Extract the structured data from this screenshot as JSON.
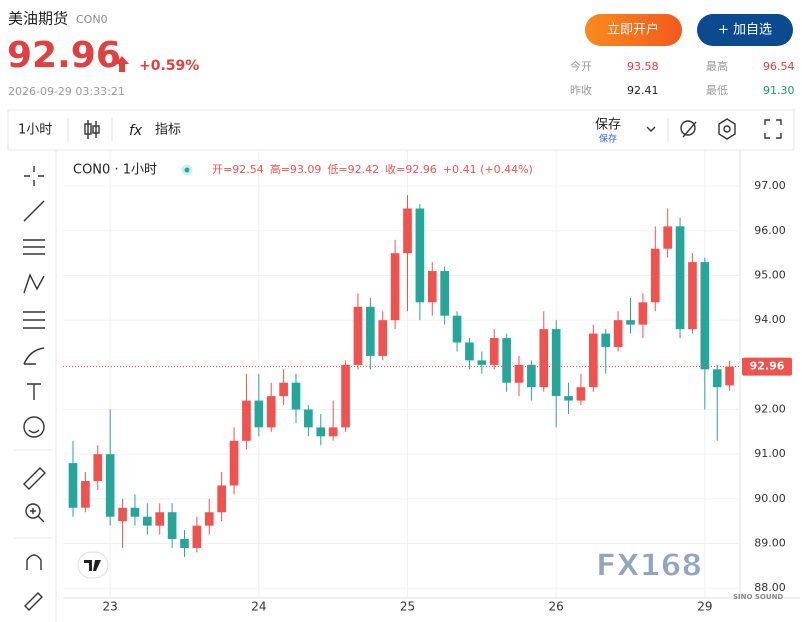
{
  "header": {
    "title": "美油期货",
    "code": "CON0",
    "price": "92.96",
    "change": "+0.59%",
    "time": "2026-09-29 03:33:21",
    "buttons": [
      "立即开户",
      "+ 加自选"
    ],
    "stats": [
      [
        "今开",
        "93.58"
      ],
      [
        "最高",
        "96.54"
      ],
      [
        "昨收",
        "92.41"
      ],
      [
        "最低",
        "91.30"
      ]
    ]
  },
  "toolbar": {
    "interval": "1小时",
    "indicators": "指标",
    "fx": "fx",
    "save": "保存",
    "save_sub": "保存"
  },
  "legend": {
    "symbol": "CON0 · 1小时",
    "open": "开=92.54",
    "high": "高=93.09",
    "low": "低=92.42",
    "close": "收=92.96",
    "change": "+0.41 (+0.44%)"
  },
  "watermark": "FX168",
  "corner_logo": "SINO SOUND",
  "chart_data": {
    "type": "candlestick",
    "categories": [
      null,
      null,
      null,
      "23",
      null,
      null,
      null,
      null,
      null,
      null,
      null,
      null,
      null,
      null,
      null,
      "24",
      null,
      null,
      null,
      null,
      null,
      null,
      null,
      null,
      null,
      null,
      null,
      "25",
      null,
      null,
      null,
      null,
      null,
      null,
      null,
      null,
      null,
      null,
      null,
      "26",
      null,
      null,
      null,
      null,
      null,
      null,
      null,
      null,
      null,
      null,
      null,
      "29",
      null,
      null
    ],
    "open": [
      90.8,
      89.8,
      90.4,
      91.0,
      89.5,
      89.8,
      89.6,
      89.4,
      89.7,
      89.1,
      88.9,
      89.4,
      89.7,
      90.3,
      91.3,
      92.2,
      91.6,
      92.3,
      92.6,
      92.0,
      91.6,
      91.4,
      91.6,
      93.0,
      94.3,
      93.2,
      94.0,
      95.5,
      96.5,
      94.4,
      95.1,
      94.1,
      93.5,
      93.1,
      93.0,
      93.6,
      92.6,
      93.0,
      92.5,
      93.8,
      92.3,
      92.2,
      92.5,
      93.7,
      93.4,
      94.0,
      93.9,
      94.4,
      95.6,
      96.1,
      93.8,
      95.3,
      92.9,
      92.54
    ],
    "high": [
      91.3,
      90.6,
      91.2,
      92.0,
      90.0,
      90.1,
      89.9,
      89.9,
      89.9,
      89.3,
      89.6,
      90.0,
      90.6,
      91.6,
      92.8,
      92.8,
      92.6,
      92.9,
      92.8,
      92.1,
      91.9,
      92.2,
      93.1,
      94.6,
      94.5,
      94.2,
      95.8,
      96.8,
      96.6,
      95.3,
      95.2,
      94.2,
      93.6,
      93.3,
      93.8,
      93.7,
      93.2,
      93.1,
      94.2,
      94.0,
      92.6,
      92.8,
      93.9,
      93.8,
      94.2,
      94.5,
      94.6,
      96.1,
      96.5,
      96.3,
      95.5,
      95.4,
      93.0,
      93.09
    ],
    "low": [
      89.6,
      89.7,
      90.2,
      89.4,
      88.9,
      89.4,
      89.2,
      89.2,
      88.9,
      88.7,
      88.8,
      89.2,
      89.5,
      90.1,
      91.1,
      91.4,
      91.5,
      92.1,
      91.7,
      91.4,
      91.2,
      91.3,
      91.5,
      92.9,
      92.9,
      93.1,
      93.8,
      94.2,
      94.0,
      94.1,
      93.9,
      93.3,
      92.9,
      92.8,
      92.9,
      92.4,
      92.3,
      92.2,
      92.4,
      91.6,
      91.9,
      92.1,
      92.4,
      92.8,
      93.3,
      93.7,
      93.6,
      94.2,
      95.4,
      93.6,
      93.7,
      92.0,
      91.3,
      92.42
    ],
    "close": [
      89.8,
      90.4,
      91.0,
      89.6,
      89.8,
      89.6,
      89.4,
      89.7,
      89.1,
      88.9,
      89.4,
      89.7,
      90.3,
      91.3,
      92.2,
      91.6,
      92.3,
      92.6,
      92.0,
      91.6,
      91.4,
      91.6,
      93.0,
      94.3,
      93.2,
      94.0,
      95.5,
      96.5,
      94.4,
      95.1,
      94.1,
      93.5,
      93.1,
      93.0,
      93.6,
      92.6,
      93.0,
      92.5,
      93.8,
      92.3,
      92.2,
      92.5,
      93.7,
      93.4,
      94.0,
      93.9,
      94.4,
      95.6,
      96.1,
      93.8,
      95.3,
      92.9,
      92.5,
      92.96
    ],
    "up_color": "#ef5350",
    "down_color": "#26a69a",
    "last_price": 92.96,
    "ylim": [
      87.78,
      97.81
    ],
    "yticks": [
      {
        "value": 88,
        "label": "88.00"
      },
      {
        "value": 89,
        "label": "89.00"
      },
      {
        "value": 90,
        "label": "90.00"
      },
      {
        "value": 91,
        "label": "91.00"
      },
      {
        "value": 92,
        "label": "92.00"
      },
      {
        "value": 93,
        "label": "93.00"
      },
      {
        "value": 94,
        "label": "94.00"
      },
      {
        "value": 95,
        "label": "95.00"
      },
      {
        "value": 96,
        "label": "96.00"
      },
      {
        "value": 97,
        "label": "97.00"
      }
    ],
    "grid": true
  }
}
